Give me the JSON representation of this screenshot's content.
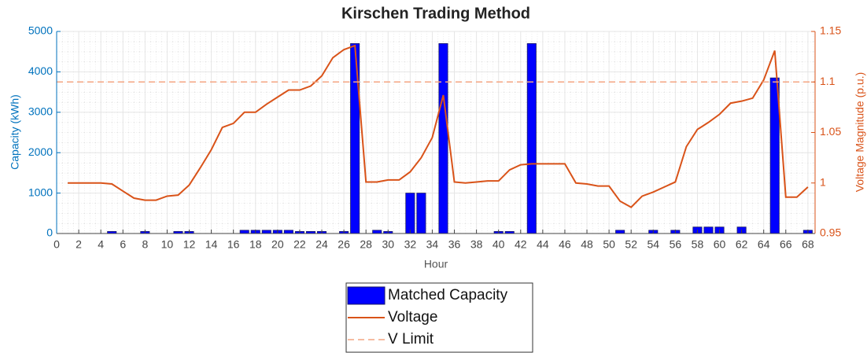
{
  "chart_data": {
    "type": "bar-line",
    "title": "Kirschen Trading Method",
    "xlabel": "Hour",
    "ylabel": "Capacity (kWh)",
    "y2label": "Voltage Magnitude (p.u.)",
    "x": [
      1,
      2,
      3,
      4,
      5,
      6,
      7,
      8,
      9,
      10,
      11,
      12,
      13,
      14,
      15,
      16,
      17,
      18,
      19,
      20,
      21,
      22,
      23,
      24,
      25,
      26,
      27,
      28,
      29,
      30,
      31,
      32,
      33,
      34,
      35,
      36,
      37,
      38,
      39,
      40,
      41,
      42,
      43,
      44,
      45,
      46,
      47,
      48,
      49,
      50,
      51,
      52,
      53,
      54,
      55,
      56,
      57,
      58,
      59,
      60,
      61,
      62,
      63,
      64,
      65,
      66,
      67,
      68
    ],
    "series": [
      {
        "name": "Matched Capacity",
        "type": "bar",
        "color": "#0000ff",
        "axis": "y",
        "values": [
          0,
          0,
          0,
          0,
          50,
          0,
          0,
          50,
          0,
          0,
          50,
          50,
          0,
          0,
          0,
          0,
          80,
          80,
          80,
          80,
          80,
          50,
          50,
          50,
          0,
          50,
          4700,
          0,
          80,
          50,
          0,
          1000,
          1000,
          0,
          4700,
          0,
          0,
          0,
          0,
          50,
          50,
          0,
          4700,
          0,
          0,
          0,
          0,
          0,
          0,
          0,
          80,
          0,
          0,
          80,
          0,
          80,
          0,
          160,
          160,
          160,
          0,
          160,
          0,
          0,
          3850,
          0,
          0,
          80
        ]
      },
      {
        "name": "Voltage",
        "type": "line",
        "color": "#d95319",
        "axis": "y2",
        "values": [
          1.0,
          1.0,
          1.0,
          1.0,
          0.999,
          0.992,
          0.985,
          0.983,
          0.983,
          0.987,
          0.988,
          0.998,
          1.015,
          1.033,
          1.055,
          1.059,
          1.07,
          1.07,
          1.078,
          1.085,
          1.092,
          1.092,
          1.096,
          1.106,
          1.124,
          1.132,
          1.136,
          1.001,
          1.001,
          1.003,
          1.003,
          1.011,
          1.025,
          1.045,
          1.087,
          1.001,
          1.0,
          1.001,
          1.002,
          1.002,
          1.013,
          1.018,
          1.019,
          1.019,
          1.019,
          1.019,
          1.0,
          0.999,
          0.997,
          0.997,
          0.982,
          0.976,
          0.987,
          0.991,
          0.996,
          1.001,
          1.036,
          1.053,
          1.06,
          1.068,
          1.079,
          1.081,
          1.084,
          1.102,
          1.131,
          0.986,
          0.986,
          0.996
        ]
      },
      {
        "name": "V Limit",
        "type": "hline",
        "color": "#f4a582",
        "axis": "y2",
        "value": 1.1
      }
    ],
    "xlim": [
      0,
      68.65
    ],
    "xticks": [
      0,
      2,
      4,
      6,
      8,
      10,
      12,
      14,
      16,
      18,
      20,
      22,
      24,
      26,
      28,
      30,
      32,
      34,
      36,
      38,
      40,
      42,
      44,
      46,
      48,
      50,
      52,
      54,
      56,
      58,
      60,
      62,
      64,
      66,
      68
    ],
    "ylim": [
      0,
      5000
    ],
    "yticks": [
      0,
      1000,
      2000,
      3000,
      4000,
      5000
    ],
    "y2lim": [
      0.95,
      1.15
    ],
    "y2ticks": [
      0.95,
      1,
      1.05,
      1.1,
      1.15
    ],
    "grid": true,
    "legend": "below"
  }
}
